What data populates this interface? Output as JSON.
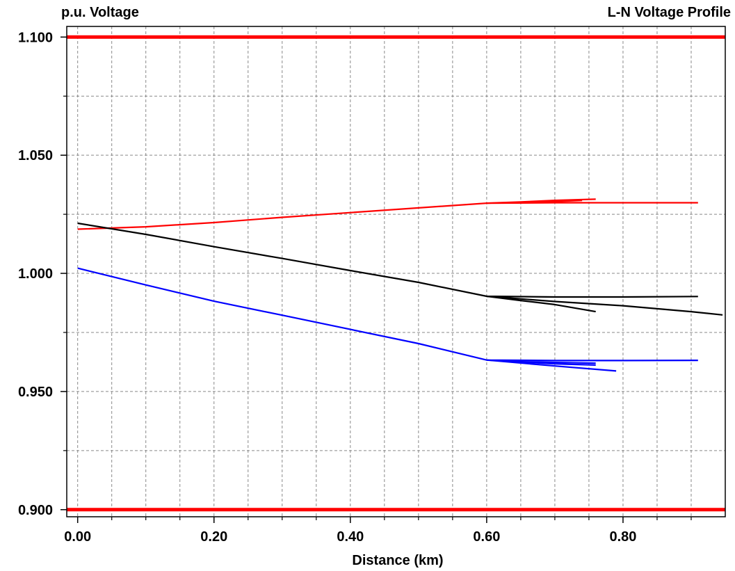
{
  "chart_data": {
    "type": "line",
    "title": "L-N Voltage Profile",
    "ylabel": "p.u. Voltage",
    "xlabel": "Distance (km)",
    "xlim": [
      -0.016,
      0.95
    ],
    "ylim": [
      0.897,
      1.1045
    ],
    "x_major_ticks": [
      0.0,
      0.2,
      0.4,
      0.6,
      0.8
    ],
    "x_tick_labels": [
      "0.00",
      "0.20",
      "0.40",
      "0.60",
      "0.80"
    ],
    "x_minor_ticks": [
      0.05,
      0.1,
      0.15,
      0.25,
      0.3,
      0.35,
      0.45,
      0.5,
      0.55,
      0.65,
      0.7,
      0.75,
      0.85,
      0.9
    ],
    "y_major_ticks": [
      0.9,
      0.95,
      1.0,
      1.05,
      1.1
    ],
    "y_tick_labels": [
      "0.900",
      "0.950",
      "1.000",
      "1.050",
      "1.100"
    ],
    "y_minor_ticks": [
      0.925,
      0.975,
      1.025,
      1.075
    ],
    "grid": true,
    "limit_lines": [
      {
        "y": 1.1,
        "color": "#ff0000"
      },
      {
        "y": 0.9,
        "color": "#ff0000"
      }
    ],
    "series": [
      {
        "color": "#ff0000",
        "lines": [
          [
            [
              0.0,
              1.0187
            ],
            [
              0.1,
              1.0197
            ],
            [
              0.2,
              1.0215
            ],
            [
              0.3,
              1.0237
            ],
            [
              0.4,
              1.0257
            ],
            [
              0.5,
              1.0277
            ],
            [
              0.6,
              1.0297
            ],
            [
              0.7,
              1.0299
            ],
            [
              0.8,
              1.0299
            ],
            [
              0.91,
              1.0299
            ]
          ],
          [
            [
              0.6,
              1.0297
            ],
            [
              0.65,
              1.0302
            ],
            [
              0.7,
              1.0309
            ],
            [
              0.76,
              1.0314
            ]
          ],
          [
            [
              0.65,
              1.03
            ],
            [
              0.7,
              1.0304
            ],
            [
              0.74,
              1.0309
            ]
          ]
        ]
      },
      {
        "color": "#000000",
        "lines": [
          [
            [
              0.0,
              1.0212
            ],
            [
              0.1,
              1.0165
            ],
            [
              0.2,
              1.0113
            ],
            [
              0.3,
              1.0063
            ],
            [
              0.4,
              1.0012
            ],
            [
              0.5,
              0.9962
            ],
            [
              0.6,
              0.9903
            ],
            [
              0.7,
              0.99
            ],
            [
              0.8,
              0.99
            ],
            [
              0.91,
              0.9902
            ]
          ],
          [
            [
              0.6,
              0.9903
            ],
            [
              0.7,
              0.9881
            ],
            [
              0.8,
              0.9863
            ],
            [
              0.9,
              0.9838
            ],
            [
              0.946,
              0.9824
            ]
          ],
          [
            [
              0.6,
              0.9903
            ],
            [
              0.65,
              0.9885
            ],
            [
              0.7,
              0.9868
            ],
            [
              0.76,
              0.9838
            ]
          ]
        ]
      },
      {
        "color": "#0000ff",
        "lines": [
          [
            [
              0.0,
              1.0022
            ],
            [
              0.1,
              0.9951
            ],
            [
              0.2,
              0.9882
            ],
            [
              0.3,
              0.9823
            ],
            [
              0.4,
              0.9763
            ],
            [
              0.5,
              0.9703
            ],
            [
              0.6,
              0.9633
            ],
            [
              0.7,
              0.9631
            ],
            [
              0.8,
              0.9631
            ],
            [
              0.91,
              0.9632
            ]
          ],
          [
            [
              0.6,
              0.9633
            ],
            [
              0.7,
              0.9608
            ],
            [
              0.79,
              0.9587
            ]
          ],
          [
            [
              0.6,
              0.9633
            ],
            [
              0.7,
              0.9617
            ],
            [
              0.76,
              0.9612
            ]
          ],
          [
            [
              0.64,
              0.9627
            ],
            [
              0.7,
              0.9623
            ],
            [
              0.76,
              0.962
            ]
          ]
        ]
      }
    ]
  }
}
